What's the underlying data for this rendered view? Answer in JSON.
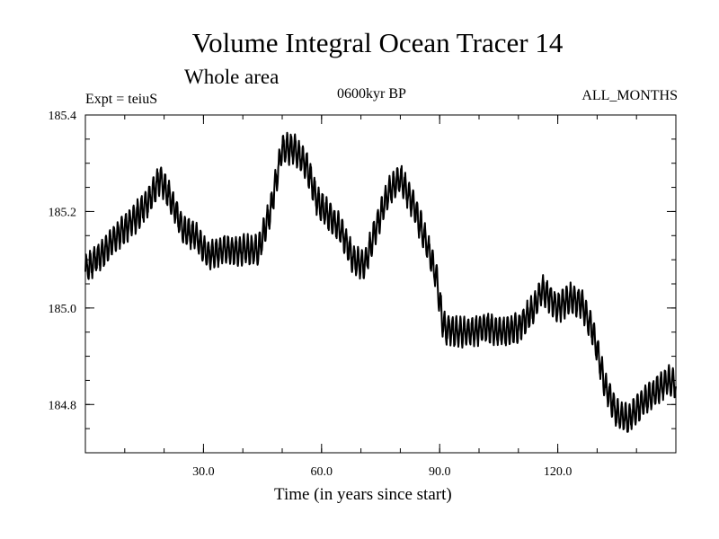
{
  "chart_data": {
    "type": "line",
    "title": "Volume Integral Ocean Tracer 14",
    "subtitle": "Whole area",
    "annotations": {
      "left": "Expt = teiuS",
      "center": "0600kyr BP",
      "right": "ALL_MONTHS"
    },
    "xlabel": "Time (in years since start)",
    "ylabel": "",
    "xlim": [
      0,
      150
    ],
    "ylim": [
      184.7,
      185.4
    ],
    "x_ticks": [
      30,
      60,
      90,
      120
    ],
    "x_tick_labels": [
      "30.0",
      "60.0",
      "90.0",
      "120.0"
    ],
    "x_minor_step": 10,
    "y_ticks": [
      184.8,
      185.0,
      185.2,
      185.4
    ],
    "y_tick_labels": [
      "184.8",
      "185.0",
      "185.2",
      "185.4"
    ],
    "y_minor_step": 0.05,
    "seasonal_amplitude": 0.028,
    "trend": {
      "x": [
        0,
        4,
        8,
        12,
        16,
        19,
        22,
        25,
        28,
        31,
        35,
        40,
        44,
        47,
        50,
        53,
        56,
        59,
        62,
        65,
        68,
        71,
        74,
        77,
        80,
        83,
        86,
        89,
        91,
        94,
        98,
        102,
        106,
        110,
        114,
        116,
        118,
        120,
        123,
        126,
        129,
        132,
        135,
        138,
        141,
        144,
        148,
        150
      ],
      "y": [
        185.08,
        185.11,
        185.15,
        185.18,
        185.22,
        185.27,
        185.22,
        185.16,
        185.15,
        185.11,
        185.12,
        185.12,
        185.12,
        185.2,
        185.33,
        185.33,
        185.3,
        185.22,
        185.19,
        185.16,
        185.1,
        185.09,
        185.17,
        185.24,
        185.27,
        185.22,
        185.15,
        185.07,
        184.96,
        184.95,
        184.95,
        184.96,
        184.95,
        184.96,
        185.0,
        185.04,
        185.02,
        185.0,
        185.02,
        185.01,
        184.95,
        184.84,
        184.78,
        184.77,
        184.8,
        184.82,
        184.85,
        184.84
      ]
    }
  }
}
